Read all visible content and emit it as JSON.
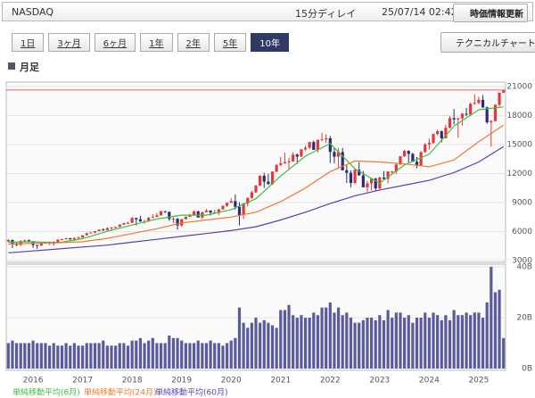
{
  "header": {
    "title": "NASDAQ",
    "delay": "15分ディレイ",
    "timestamp": "25/07/14 02:42",
    "refresh": "時価情報更新"
  },
  "tabs": [
    "1日",
    "3ヶ月",
    "6ヶ月",
    "1年",
    "2年",
    "5年",
    "10年"
  ],
  "active_tab": 6,
  "technical_button": "テクニカルチャート",
  "section_label": "月足",
  "chart_data": [
    {
      "type": "candlestick",
      "up_color": "#e03a3a",
      "down_color": "#2b2b7a",
      "grid": true,
      "current_line_color": "#e86060",
      "ylim": [
        3000,
        21000
      ],
      "yticks": [
        3000,
        6000,
        9000,
        12000,
        15000,
        18000,
        21000
      ],
      "open": [
        4987,
        5128,
        4777,
        4620,
        5054,
        5109,
        5007,
        4614,
        4558,
        4870,
        4775,
        4948,
        4843,
        5162,
        5213,
        5312,
        5189,
        5324,
        5383,
        5615,
        5825,
        5912,
        6048,
        6199,
        6140,
        6348,
        6429,
        6496,
        6728,
        6874,
        6903,
        7411,
        7273,
        7063,
        7066,
        7442,
        7510,
        7672,
        8110,
        8046,
        7306,
        7331,
        6635,
        7282,
        7533,
        7729,
        8095,
        7453,
        8006,
        8175,
        7963,
        7999,
        8292,
        8665,
        8973,
        9151,
        8567,
        7700,
        8890,
        9490,
        10059,
        10745,
        11775,
        11168,
        10912,
        12199,
        12888,
        13071,
        13192,
        13247,
        13962,
        13749,
        14504,
        14673,
        15259,
        14449,
        15498,
        15538,
        15645,
        14240,
        13751,
        14221,
        12335,
        12081,
        11029,
        12391,
        11816,
        10576,
        10988,
        11468,
        10466,
        11585,
        11456,
        12222,
        12227,
        12935,
        13788,
        14346,
        14035,
        13219,
        12851,
        14226,
        15011,
        15164,
        16092,
        16379,
        15658,
        16735,
        17733,
        17599,
        17714,
        18189,
        18095,
        19218,
        19311,
        19627,
        18847,
        17299,
        17446,
        19114,
        20370
      ],
      "high": [
        5232,
        5176,
        4928,
        5096,
        5161,
        5176,
        5008,
        4628,
        4895,
        4970,
        4965,
        4980,
        5181,
        5272,
        5343,
        5342,
        5400,
        5488,
        5621,
        5867,
        5928,
        6075,
        6229,
        6341,
        6460,
        6460,
        6500,
        6748,
        6914,
        7003,
        7506,
        7432,
        7637,
        7232,
        7486,
        7806,
        7933,
        8133,
        8133,
        8049,
        7487,
        7374,
        7303,
        7562,
        7840,
        8176,
        8164,
        8055,
        8340,
        8216,
        8243,
        8353,
        8705,
        9022,
        9451,
        9838,
        9024,
        8960,
        9523,
        10221,
        10851,
        11830,
        12074,
        11965,
        12228,
        12973,
        13729,
        14175,
        13620,
        14212,
        14073,
        14535,
        14863,
        15288,
        15403,
        15505,
        16212,
        16057,
        15901,
        14647,
        14646,
        14643,
        12943,
        12320,
        12445,
        13181,
        12270,
        11255,
        11469,
        11571,
        11689,
        12269,
        12227,
        12270,
        13067,
        13829,
        14447,
        14404,
        14150,
        13714,
        14305,
        15150,
        15611,
        16134,
        16538,
        16451,
        17032,
        17936,
        18671,
        17785,
        18269,
        18785,
        19366,
        20204,
        19955,
        20111,
        18941,
        17496,
        19175,
        20370,
        20656
      ],
      "low": [
        4910,
        4292,
        4487,
        4543,
        4967,
        4975,
        4313,
        4210,
        4506,
        4740,
        4595,
        4575,
        4831,
        5155,
        5174,
        5154,
        5034,
        5321,
        5372,
        5596,
        5769,
        5805,
        6042,
        6089,
        6125,
        6177,
        6306,
        6466,
        6683,
        6779,
        6901,
        6630,
        6992,
        6805,
        6991,
        7410,
        7502,
        7633,
        7918,
        7106,
        6876,
        6190,
        6457,
        7227,
        7505,
        7720,
        7452,
        7292,
        8005,
        7663,
        7846,
        7701,
        8285,
        8566,
        8962,
        8264,
        6631,
        7287,
        8609,
        9385,
        10003,
        10720,
        10519,
        10823,
        10822,
        12115,
        12744,
        13003,
        12397,
        13226,
        13002,
        13719,
        14340,
        14521,
        14436,
        14181,
        15383,
        15160,
        13095,
        13038,
        12555,
        12326,
        11035,
        10565,
        10882,
        11786,
        10576,
        10089,
        10262,
        10207,
        10265,
        11398,
        10983,
        11885,
        11964,
        12921,
        13716,
        13161,
        13191,
        12544,
        12750,
        14149,
        14477,
        15061,
        15957,
        15223,
        15615,
        16656,
        17066,
        15708,
        16974,
        17931,
        17942,
        19106,
        19159,
        18774,
        17145,
        14784,
        17366,
        18925,
        20306
      ],
      "close": [
        5128,
        4777,
        4620,
        5054,
        5109,
        5007,
        4614,
        4558,
        4870,
        4775,
        4948,
        4843,
        5162,
        5213,
        5312,
        5189,
        5324,
        5383,
        5615,
        5825,
        5912,
        6048,
        6199,
        6140,
        6348,
        6429,
        6496,
        6728,
        6874,
        6903,
        7411,
        7273,
        7063,
        7066,
        7442,
        7510,
        7672,
        8110,
        8046,
        7306,
        7331,
        6635,
        7282,
        7533,
        7729,
        8095,
        7453,
        8006,
        8175,
        7963,
        7999,
        8292,
        8665,
        8973,
        9151,
        8567,
        7700,
        8890,
        9490,
        10059,
        10745,
        11775,
        11168,
        10912,
        12199,
        12888,
        13071,
        13192,
        13247,
        13962,
        13749,
        14504,
        14673,
        15259,
        14449,
        15498,
        15538,
        15645,
        14240,
        13751,
        14221,
        12335,
        12081,
        11029,
        12391,
        11816,
        10576,
        10988,
        11468,
        10466,
        11585,
        11456,
        12222,
        12227,
        12935,
        13788,
        14346,
        14035,
        13219,
        12851,
        14226,
        15011,
        15164,
        16092,
        16379,
        15658,
        16735,
        17733,
        17599,
        17714,
        18189,
        18095,
        19218,
        19311,
        19627,
        18847,
        17299,
        17446,
        19114,
        20370,
        20640
      ],
      "series": [
        {
          "name": "単純移動平均(6月)",
          "color": "#3fbf3f",
          "x": [
            0,
            6,
            12,
            18,
            24,
            30,
            36,
            42,
            48,
            54,
            60,
            66,
            72,
            78,
            84,
            90,
            96,
            102,
            108,
            114,
            120
          ],
          "values": [
            4900,
            4950,
            4830,
            5270,
            6030,
            6680,
            7300,
            7700,
            7700,
            8270,
            9400,
            11750,
            13800,
            15100,
            12500,
            11000,
            12900,
            14000,
            16900,
            18600,
            18900
          ]
        },
        {
          "name": "単純移動平均(24月)",
          "color": "#f07a30",
          "x": [
            0,
            6,
            12,
            18,
            24,
            30,
            36,
            42,
            48,
            54,
            60,
            66,
            72,
            78,
            84,
            90,
            96,
            102,
            108,
            114,
            120
          ],
          "values": [
            4700,
            4800,
            4850,
            4950,
            5300,
            5800,
            6300,
            6900,
            7200,
            7500,
            8000,
            9100,
            10500,
            12200,
            13300,
            13200,
            13000,
            12700,
            13400,
            15300,
            17000
          ]
        },
        {
          "name": "単純移動平均(60月)",
          "color": "#5a3fb0",
          "x": [
            0,
            6,
            12,
            18,
            24,
            30,
            36,
            42,
            48,
            54,
            60,
            66,
            72,
            78,
            84,
            90,
            96,
            102,
            108,
            114,
            120
          ],
          "values": [
            3800,
            4000,
            4200,
            4400,
            4600,
            4900,
            5200,
            5500,
            5800,
            6100,
            6500,
            7200,
            8000,
            8900,
            9700,
            10300,
            10800,
            11300,
            12100,
            13200,
            14800
          ]
        }
      ]
    },
    {
      "type": "bar",
      "color": "#5a5a9e",
      "ylim": [
        0,
        40
      ],
      "yticks": [
        {
          "value": 0,
          "label": "0B"
        },
        {
          "value": 20,
          "label": "20B"
        },
        {
          "value": 40,
          "label": "40B"
        }
      ],
      "categories": [
        null,
        null,
        null,
        null,
        null,
        null,
        "2016",
        null,
        null,
        null,
        null,
        null,
        null,
        null,
        null,
        null,
        null,
        null,
        "2017",
        null,
        null,
        null,
        null,
        null,
        null,
        null,
        null,
        null,
        null,
        null,
        "2018",
        null,
        null,
        null,
        null,
        null,
        null,
        null,
        null,
        null,
        null,
        null,
        "2019",
        null,
        null,
        null,
        null,
        null,
        null,
        null,
        null,
        null,
        null,
        null,
        "2020",
        null,
        null,
        null,
        null,
        null,
        null,
        null,
        null,
        null,
        null,
        null,
        "2021",
        null,
        null,
        null,
        null,
        null,
        null,
        null,
        null,
        null,
        null,
        null,
        "2022",
        null,
        null,
        null,
        null,
        null,
        null,
        null,
        null,
        null,
        null,
        null,
        "2023",
        null,
        null,
        null,
        null,
        null,
        null,
        null,
        null,
        null,
        null,
        null,
        "2024",
        null,
        null,
        null,
        null,
        null,
        null,
        null,
        null,
        null,
        null,
        null,
        "2025",
        null,
        null,
        null,
        null,
        null,
        null
      ],
      "values": [
        10,
        11,
        10,
        10,
        10,
        10,
        11,
        10,
        10,
        10,
        9,
        10,
        9,
        9,
        10,
        9,
        10,
        9,
        9,
        10,
        10,
        10,
        10,
        11,
        9,
        9,
        9,
        10,
        10,
        9,
        11,
        11,
        12,
        10,
        11,
        12,
        10,
        10,
        10,
        13,
        12,
        12,
        11,
        10,
        10,
        10,
        11,
        10,
        10,
        11,
        10,
        10,
        9,
        10,
        11,
        12,
        24,
        18,
        16,
        18,
        20,
        18,
        19,
        18,
        17,
        16,
        23,
        23,
        25,
        21,
        20,
        21,
        20,
        20,
        22,
        21,
        24,
        24,
        26,
        22,
        24,
        21,
        22,
        20,
        18,
        18,
        19,
        20,
        20,
        19,
        21,
        19,
        23,
        20,
        22,
        22,
        20,
        21,
        18,
        20,
        20,
        22,
        20,
        22,
        21,
        19,
        21,
        19,
        23,
        21,
        21,
        22,
        21,
        22,
        22,
        20,
        26,
        40,
        30,
        31,
        12
      ]
    }
  ]
}
